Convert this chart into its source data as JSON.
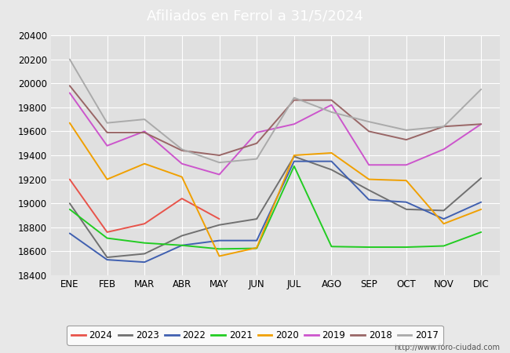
{
  "title": "Afiliados en Ferrol a 31/5/2024",
  "title_color": "#ffffff",
  "title_bg_color": "#4d7cc7",
  "months": [
    "ENE",
    "FEB",
    "MAR",
    "ABR",
    "MAY",
    "JUN",
    "JUL",
    "AGO",
    "SEP",
    "OCT",
    "NOV",
    "DIC"
  ],
  "ylim": [
    18400,
    20400
  ],
  "series": {
    "2024": {
      "color": "#e8534a",
      "data": [
        19200,
        18760,
        18830,
        19040,
        18870,
        null,
        null,
        null,
        null,
        null,
        null,
        null
      ]
    },
    "2023": {
      "color": "#707070",
      "data": [
        19000,
        18550,
        18580,
        18730,
        18820,
        18870,
        19390,
        19280,
        19110,
        18950,
        18940,
        19210
      ]
    },
    "2022": {
      "color": "#4060b0",
      "data": [
        18750,
        18530,
        18510,
        18650,
        18690,
        18690,
        19350,
        19350,
        19030,
        19010,
        18870,
        19010
      ]
    },
    "2021": {
      "color": "#22cc22",
      "data": [
        18950,
        18710,
        18670,
        18650,
        18620,
        18625,
        19310,
        18640,
        18635,
        18635,
        18645,
        18760
      ]
    },
    "2020": {
      "color": "#f0a000",
      "data": [
        19670,
        19200,
        19330,
        19220,
        18560,
        18630,
        19400,
        19420,
        19200,
        19190,
        18830,
        18950
      ]
    },
    "2019": {
      "color": "#cc55cc",
      "data": [
        19920,
        19480,
        19600,
        19330,
        19240,
        19590,
        19660,
        19820,
        19320,
        19320,
        19450,
        19660
      ]
    },
    "2018": {
      "color": "#996666",
      "data": [
        19980,
        19590,
        19590,
        19440,
        19400,
        19500,
        19860,
        19860,
        19600,
        19530,
        19640,
        19660
      ]
    },
    "2017": {
      "color": "#aaaaaa",
      "data": [
        20200,
        19670,
        19700,
        19450,
        19340,
        19370,
        19880,
        19760,
        19680,
        19610,
        19640,
        19950
      ]
    }
  },
  "url": "http://www.foro-ciudad.com",
  "background_color": "#e8e8e8",
  "plot_bg_color": "#e0e0e0",
  "grid_color": "#ffffff"
}
